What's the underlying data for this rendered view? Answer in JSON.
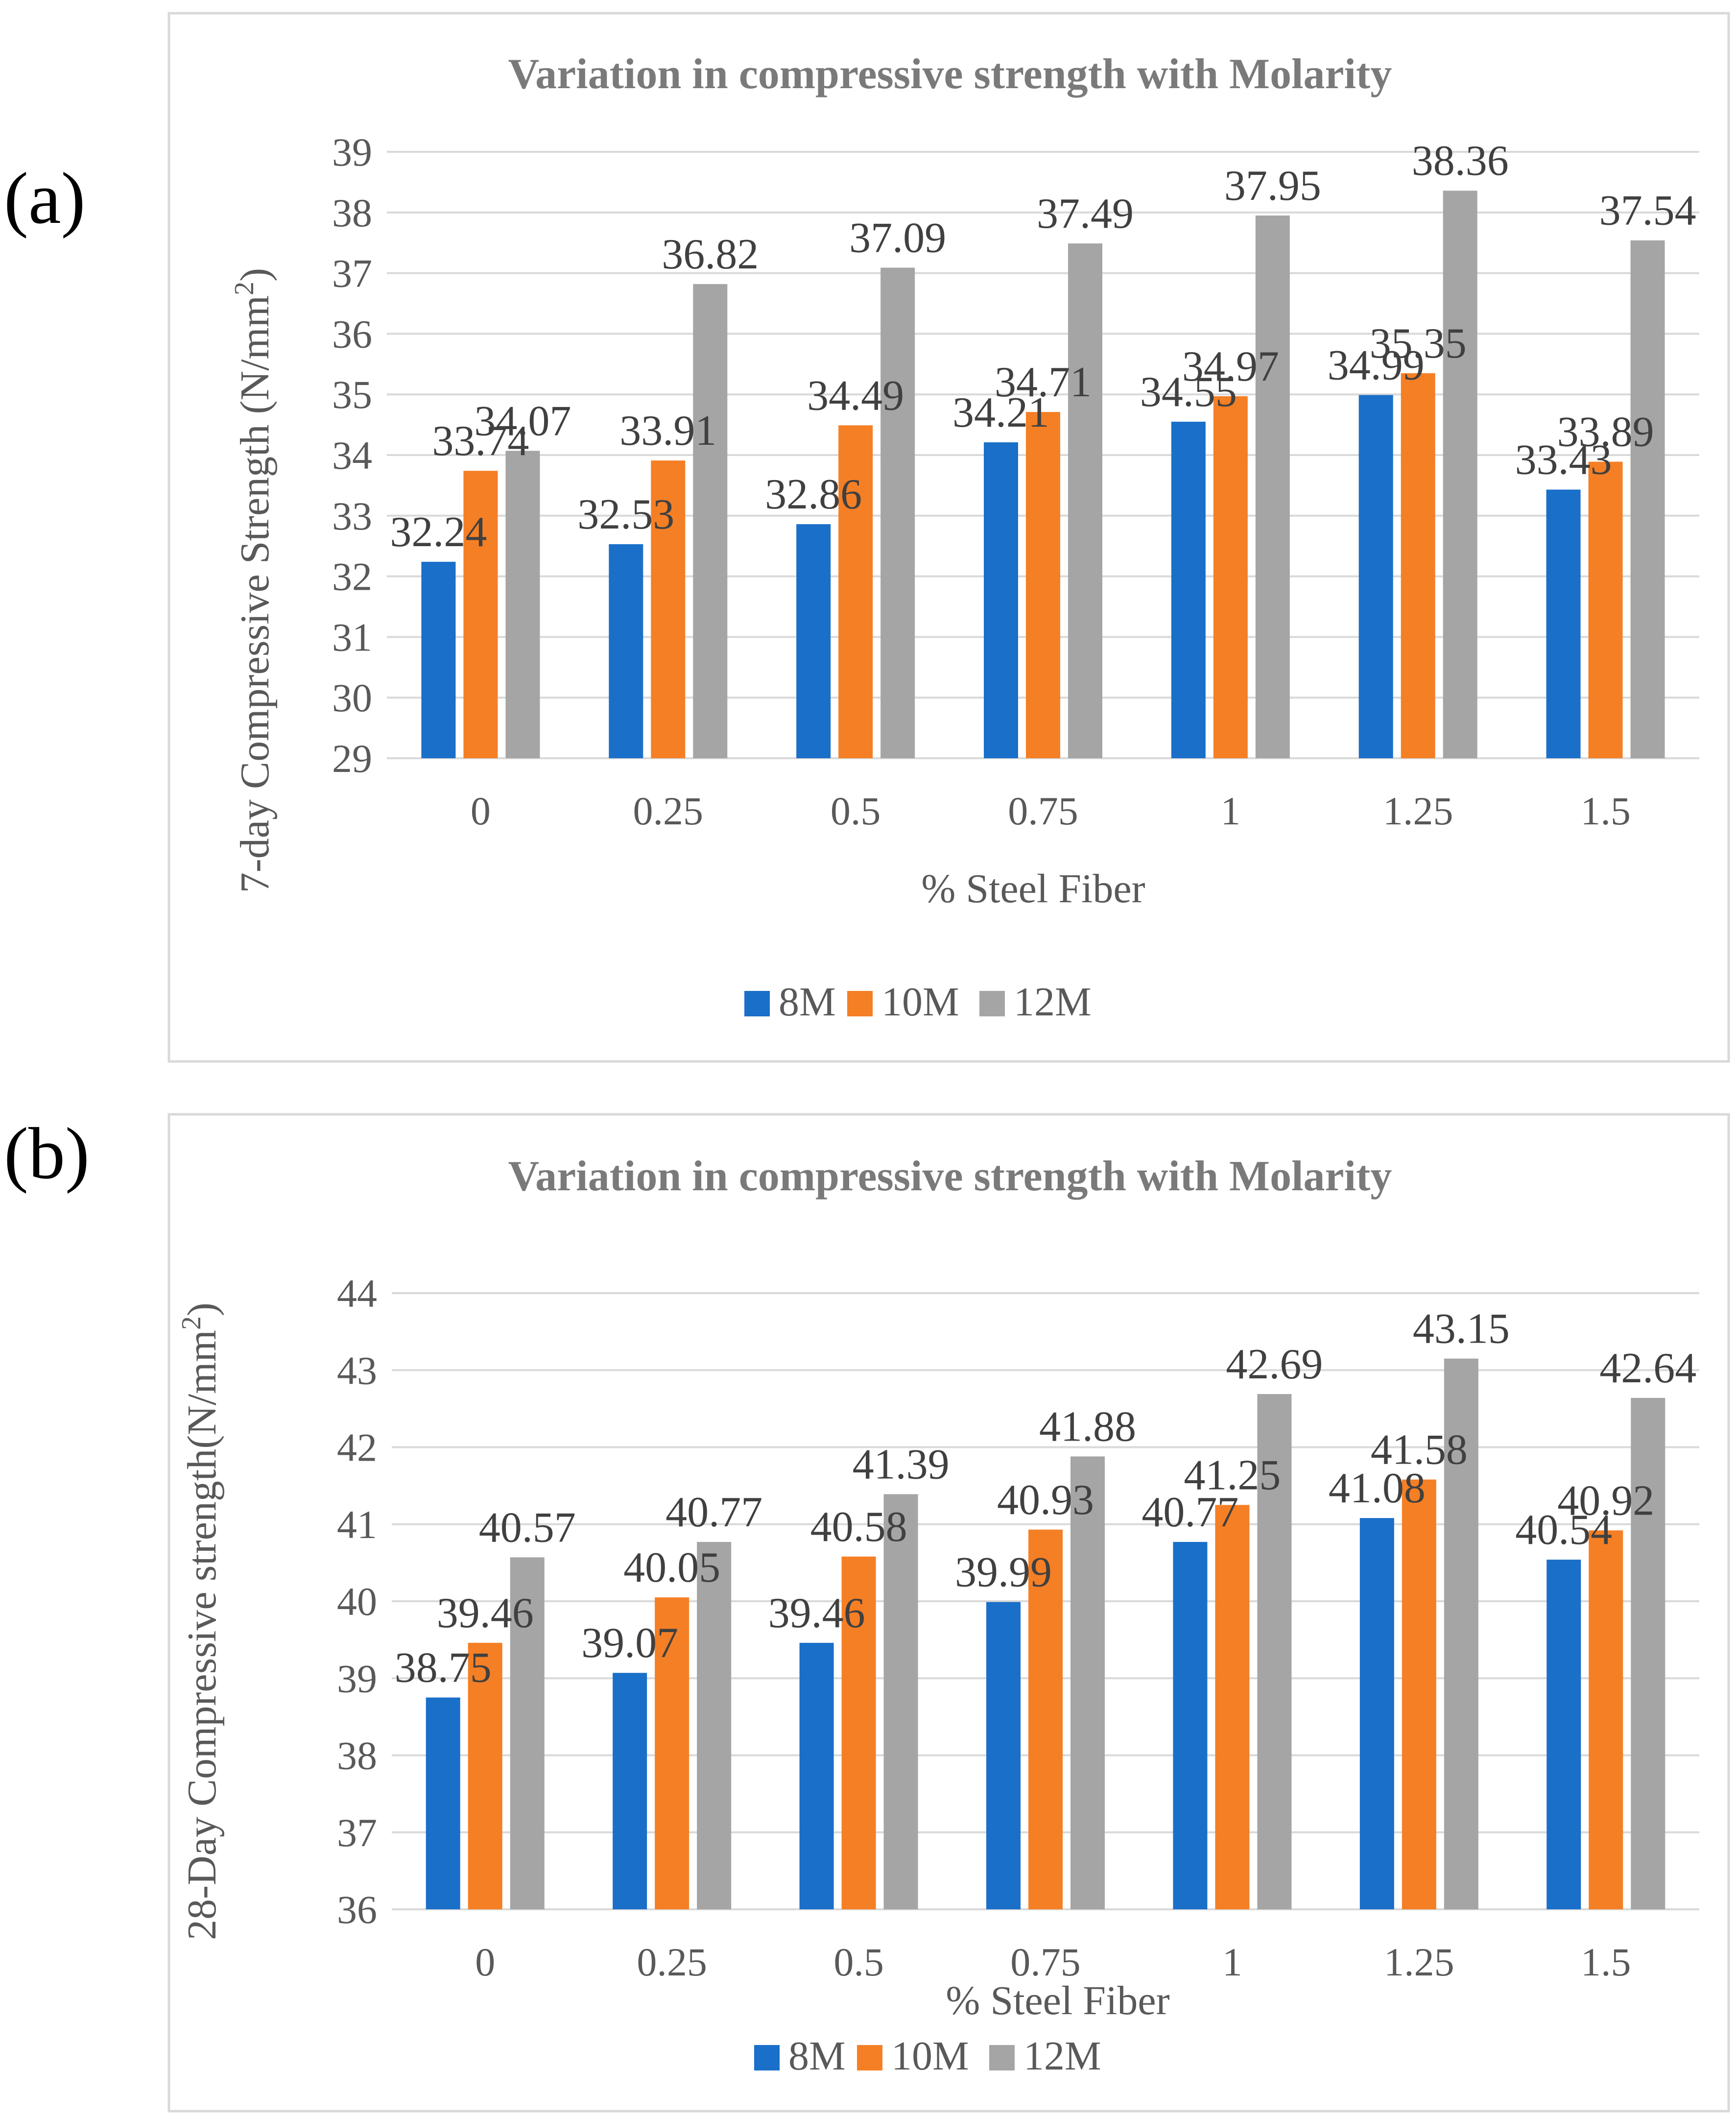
{
  "panels": [
    {
      "label": "(a)",
      "chart_data": {
        "type": "bar",
        "title": "Variation in compressive strength with Molarity",
        "xlabel": "% Steel Fiber",
        "ylabel": "7-day Compressive Strength (N/mm²)",
        "categories": [
          "0",
          "0.25",
          "0.5",
          "0.75",
          "1",
          "1.25",
          "1.5"
        ],
        "yticks": [
          "29",
          "30",
          "31",
          "32",
          "33",
          "34",
          "35",
          "36",
          "37",
          "38",
          "39"
        ],
        "ylim": [
          29,
          39
        ],
        "grid": true,
        "legend_position": "bottom",
        "series": [
          {
            "name": "8M",
            "color": "#1a6fc9",
            "values": [
              32.24,
              32.53,
              32.86,
              34.21,
              34.55,
              34.99,
              33.43
            ],
            "labels": [
              "32.24",
              "32.53",
              "32.86",
              "34.21",
              "34.55",
              "34.99",
              "33.43"
            ]
          },
          {
            "name": "10M",
            "color": "#f57f25",
            "values": [
              33.74,
              33.91,
              34.49,
              34.71,
              34.97,
              35.35,
              33.89
            ],
            "labels": [
              "33.74",
              "33.91",
              "34.49",
              "34.71",
              "34.97",
              "35.35",
              "33.89"
            ]
          },
          {
            "name": "12M",
            "color": "#a5a5a5",
            "values": [
              34.07,
              36.82,
              37.09,
              37.49,
              37.95,
              38.36,
              37.54
            ],
            "labels": [
              "34.07",
              "36.82",
              "37.09",
              "37.49",
              "37.95",
              "38.36",
              "37.54"
            ]
          }
        ]
      }
    },
    {
      "label": "(b)",
      "chart_data": {
        "type": "bar",
        "title": "Variation in compressive strength with Molarity",
        "xlabel": "% Steel Fiber",
        "ylabel": "28-Day Compressive strength(N/mm²)",
        "categories": [
          "0",
          "0.25",
          "0.5",
          "0.75",
          "1",
          "1.25",
          "1.5"
        ],
        "yticks": [
          "36",
          "37",
          "38",
          "39",
          "40",
          "41",
          "42",
          "43",
          "44"
        ],
        "ylim": [
          36,
          44
        ],
        "grid": true,
        "legend_position": "bottom",
        "series": [
          {
            "name": "8M",
            "color": "#1a6fc9",
            "values": [
              38.75,
              39.07,
              39.46,
              39.99,
              40.77,
              41.08,
              40.54
            ],
            "labels": [
              "38.75",
              "39.07",
              "39.46",
              "39.99",
              "40.77",
              "41.08",
              "40.54"
            ]
          },
          {
            "name": "10M",
            "color": "#f57f25",
            "values": [
              39.46,
              40.05,
              40.58,
              40.93,
              41.25,
              41.58,
              40.92
            ],
            "labels": [
              "39.46",
              "40.05",
              "40.58",
              "40.93",
              "41.25",
              "41.58",
              "40.92"
            ]
          },
          {
            "name": "12M",
            "color": "#a5a5a5",
            "values": [
              40.57,
              40.77,
              41.39,
              41.88,
              42.69,
              43.15,
              42.64
            ],
            "labels": [
              "40.57",
              "40.77",
              "41.39",
              "41.88",
              "42.69",
              "43.15",
              "42.64"
            ]
          }
        ]
      }
    }
  ]
}
